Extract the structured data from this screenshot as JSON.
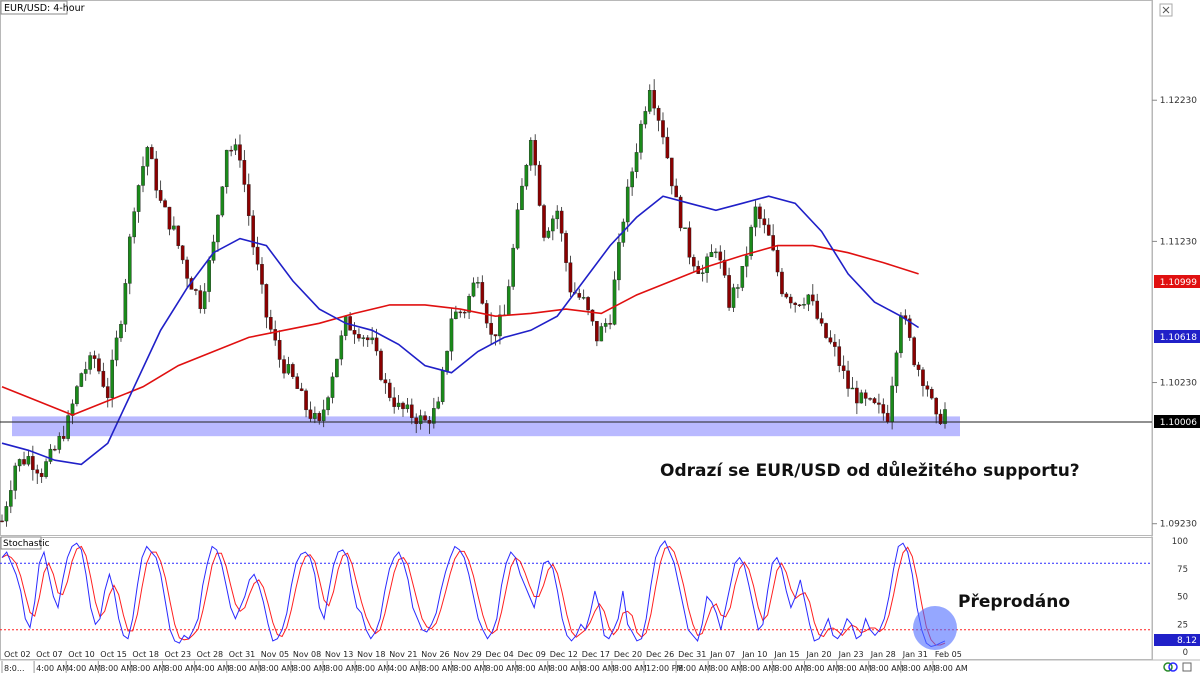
{
  "window_title": "EUR/USD: 4-hour",
  "indicator_label": "Stochastic",
  "annotation_main": "Odrazí se EUR/USD od důležitého supportu?",
  "annotation_oversold": "Přeprodáno",
  "colors": {
    "bull_candle": "#1a8a1a",
    "bear_candle": "#8b0000",
    "sma_blue": "#2020c8",
    "sma_red": "#e01010",
    "support_zone": "#7f7fff",
    "stoch_k": "#2a2aff",
    "stoch_d": "#ff2020",
    "oversold_circle": "#4f6dff"
  },
  "chart_data": [
    {
      "type": "candlestick",
      "title": "EUR/USD: 4-hour",
      "price_axis_ticks": [
        "1.12230",
        "1.11230",
        "1.10230",
        "1.09230"
      ],
      "ylim": [
        1.0915,
        1.1294
      ],
      "price_labels": {
        "last": "1.10006",
        "sma_slow": "1.10999",
        "sma_fast": "1.10618"
      },
      "support_zone": [
        1.0985,
        1.0999
      ],
      "date_ticks": [
        "Oct 02",
        "Oct 07",
        "Oct 10",
        "Oct 15",
        "Oct 18",
        "Oct 23",
        "Oct 28",
        "Oct 31",
        "Nov 05",
        "Nov 08",
        "Nov 13",
        "Nov 18",
        "Nov 21",
        "Nov 26",
        "Nov 29",
        "Dec 04",
        "Dec 09",
        "Dec 12",
        "Dec 17",
        "Dec 20",
        "Dec 26",
        "Dec 31",
        "Jan 07",
        "Jan 10",
        "Jan 15",
        "Jan 20",
        "Jan 23",
        "Jan 28",
        "Jan 31",
        "Feb 05"
      ],
      "time_ticks": [
        "8:0...",
        "4:00 AM",
        "4:00 AM",
        "8:00 AM",
        "8:00 AM",
        "8:00 AM",
        "4:00 AM",
        "8:00 AM",
        "8:00 AM",
        "8:00 AM",
        "8:00 AM",
        "8:00 AM",
        "4:00 AM",
        "8:00 AM",
        "8:00 AM",
        "8:00 AM",
        "8:00 AM",
        "8:00 AM",
        "8:00 AM",
        "8:00 AM",
        "12:00 PM",
        "8:00 AM",
        "8:00 AM",
        "8:00 AM",
        "8:00 AM",
        "8:00 AM",
        "8:00 AM",
        "8:00 AM",
        "8:00 AM",
        "8:00 AM"
      ],
      "price_path": [
        [
          0,
          1.0925
        ],
        [
          3,
          1.0965
        ],
        [
          6,
          1.097
        ],
        [
          9,
          1.096
        ],
        [
          12,
          1.0975
        ],
        [
          15,
          1.0995
        ],
        [
          18,
          1.103
        ],
        [
          21,
          1.104
        ],
        [
          24,
          1.1015
        ],
        [
          27,
          1.107
        ],
        [
          30,
          1.115
        ],
        [
          33,
          1.119
        ],
        [
          36,
          1.115
        ],
        [
          39,
          1.113
        ],
        [
          42,
          1.11
        ],
        [
          45,
          1.108
        ],
        [
          48,
          1.112
        ],
        [
          51,
          1.119
        ],
        [
          54,
          1.1185
        ],
        [
          57,
          1.112
        ],
        [
          60,
          1.107
        ],
        [
          63,
          1.104
        ],
        [
          66,
          1.1025
        ],
        [
          69,
          1.1005
        ],
        [
          72,
          1.0992
        ],
        [
          75,
          1.103
        ],
        [
          78,
          1.1065
        ],
        [
          81,
          1.106
        ],
        [
          84,
          1.105
        ],
        [
          87,
          1.102
        ],
        [
          90,
          1.1005
        ],
        [
          93,
          1.1
        ],
        [
          96,
          1.0995
        ],
        [
          99,
          1.1005
        ],
        [
          102,
          1.107
        ],
        [
          105,
          1.1075
        ],
        [
          108,
          1.11
        ],
        [
          111,
          1.1055
        ],
        [
          114,
          1.107
        ],
        [
          117,
          1.114
        ],
        [
          120,
          1.12
        ],
        [
          123,
          1.113
        ],
        [
          126,
          1.1145
        ],
        [
          129,
          1.109
        ],
        [
          132,
          1.108
        ],
        [
          135,
          1.1055
        ],
        [
          138,
          1.107
        ],
        [
          141,
          1.114
        ],
        [
          144,
          1.119
        ],
        [
          147,
          1.1235
        ],
        [
          150,
          1.12
        ],
        [
          153,
          1.115
        ],
        [
          156,
          1.1115
        ],
        [
          159,
          1.11
        ],
        [
          162,
          1.112
        ],
        [
          165,
          1.108
        ],
        [
          168,
          1.11
        ],
        [
          171,
          1.1145
        ],
        [
          174,
          1.1125
        ],
        [
          177,
          1.109
        ],
        [
          180,
          1.108
        ],
        [
          183,
          1.1085
        ],
        [
          186,
          1.106
        ],
        [
          189,
          1.1045
        ],
        [
          192,
          1.102
        ],
        [
          195,
          1.101
        ],
        [
          198,
          1.1005
        ],
        [
          201,
          1.1
        ],
        [
          204,
          1.1075
        ],
        [
          207,
          1.104
        ],
        [
          210,
          1.102
        ],
        [
          212,
          1.0995
        ],
        [
          214,
          1.1003
        ]
      ],
      "series": [
        {
          "points": [
            [
              0,
              1.102
            ],
            [
              8,
              1.101
            ],
            [
              16,
              1.1
            ],
            [
              24,
              1.101
            ],
            [
              32,
              1.102
            ],
            [
              40,
              1.1035
            ],
            [
              48,
              1.1045
            ],
            [
              56,
              1.1055
            ],
            [
              64,
              1.106
            ],
            [
              72,
              1.1065
            ],
            [
              80,
              1.1072
            ],
            [
              88,
              1.1078
            ],
            [
              96,
              1.1078
            ],
            [
              104,
              1.1075
            ],
            [
              112,
              1.107
            ],
            [
              120,
              1.1072
            ],
            [
              128,
              1.1075
            ],
            [
              136,
              1.1072
            ],
            [
              144,
              1.1085
            ],
            [
              152,
              1.1095
            ],
            [
              160,
              1.1105
            ],
            [
              168,
              1.1113
            ],
            [
              176,
              1.112
            ],
            [
              184,
              1.112
            ],
            [
              192,
              1.1115
            ],
            [
              200,
              1.1108
            ],
            [
              208,
              1.11
            ]
          ]
        },
        {
          "points": [
            [
              0,
              1.098
            ],
            [
              6,
              1.0975
            ],
            [
              12,
              1.0968
            ],
            [
              18,
              1.0965
            ],
            [
              24,
              1.098
            ],
            [
              30,
              1.102
            ],
            [
              36,
              1.106
            ],
            [
              42,
              1.109
            ],
            [
              48,
              1.1115
            ],
            [
              54,
              1.1125
            ],
            [
              60,
              1.112
            ],
            [
              66,
              1.1095
            ],
            [
              72,
              1.1075
            ],
            [
              78,
              1.1065
            ],
            [
              84,
              1.106
            ],
            [
              90,
              1.105
            ],
            [
              96,
              1.1035
            ],
            [
              102,
              1.103
            ],
            [
              108,
              1.1045
            ],
            [
              114,
              1.1055
            ],
            [
              120,
              1.106
            ],
            [
              126,
              1.107
            ],
            [
              132,
              1.1095
            ],
            [
              138,
              1.112
            ],
            [
              144,
              1.114
            ],
            [
              150,
              1.1155
            ],
            [
              156,
              1.115
            ],
            [
              162,
              1.1145
            ],
            [
              168,
              1.115
            ],
            [
              174,
              1.1155
            ],
            [
              180,
              1.115
            ],
            [
              186,
              1.113
            ],
            [
              192,
              1.11
            ],
            [
              198,
              1.108
            ],
            [
              204,
              1.107
            ],
            [
              208,
              1.1062
            ]
          ]
        }
      ]
    },
    {
      "type": "line",
      "title": "Stochastic",
      "ylim": [
        0,
        100
      ],
      "y_ticks": [
        "100",
        "75",
        "50",
        "25",
        "0"
      ],
      "levels": [
        80,
        20
      ],
      "last_value_label": "8.12",
      "series": [
        {
          "values": [
            85,
            90,
            80,
            70,
            55,
            30,
            22,
            45,
            80,
            90,
            70,
            50,
            40,
            65,
            85,
            95,
            98,
            92,
            70,
            40,
            25,
            30,
            55,
            70,
            55,
            30,
            15,
            12,
            30,
            60,
            85,
            95,
            90,
            85,
            70,
            45,
            20,
            10,
            8,
            15,
            12,
            20,
            30,
            60,
            80,
            95,
            92,
            80,
            60,
            40,
            30,
            40,
            50,
            65,
            70,
            60,
            45,
            25,
            10,
            12,
            20,
            35,
            60,
            80,
            88,
            90,
            85,
            70,
            40,
            30,
            55,
            78,
            90,
            92,
            85,
            60,
            40,
            35,
            20,
            12,
            18,
            30,
            55,
            75,
            85,
            90,
            80,
            65,
            40,
            30,
            20,
            18,
            25,
            35,
            55,
            72,
            85,
            95,
            92,
            85,
            70,
            50,
            30,
            20,
            12,
            18,
            30,
            60,
            80,
            90,
            85,
            70,
            60,
            50,
            40,
            60,
            80,
            82,
            75,
            55,
            30,
            15,
            10,
            15,
            25,
            20,
            35,
            55,
            40,
            15,
            12,
            20,
            30,
            55,
            25,
            18,
            10,
            12,
            30,
            60,
            85,
            95,
            100,
            90,
            80,
            60,
            40,
            20,
            15,
            10,
            25,
            50,
            45,
            35,
            20,
            40,
            60,
            80,
            85,
            78,
            60,
            40,
            20,
            25,
            55,
            80,
            85,
            75,
            55,
            40,
            50,
            65,
            45,
            25,
            10,
            12,
            20,
            30,
            15,
            12,
            18,
            30,
            25,
            12,
            15,
            30,
            20,
            15,
            20,
            30,
            50,
            75,
            95,
            98,
            90,
            70,
            40,
            20,
            8,
            5,
            6,
            8,
            10
          ]
        }
      ]
    }
  ]
}
